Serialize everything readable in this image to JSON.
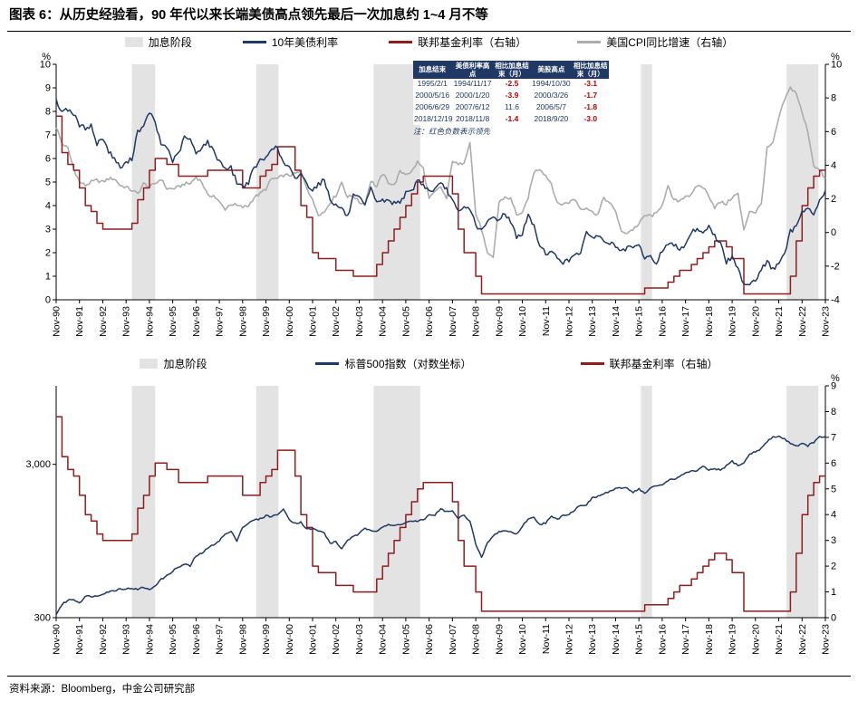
{
  "title": "图表 6：从历史经验看，90 年代以来长端美债高点领先最后一次加息约 1~4 月不等",
  "source": "资料来源：Bloomberg，中金公司研究部",
  "colors": {
    "navy": "#1F3864",
    "red": "#8F1D1D",
    "gray_line": "#ACACAC",
    "band": "#E3E3E3",
    "negative": "#C00000"
  },
  "inset_table": {
    "headers": [
      "加息结束",
      "美债利率高点",
      "相比加息结束（月）",
      "美股高点",
      "相比加息结束（月）"
    ],
    "rows": [
      [
        "1995/2/1",
        "1994/11/17",
        "-2.5",
        "1994/10/30",
        "-3.1"
      ],
      [
        "2000/5/16",
        "2000/1/20",
        "-3.9",
        "2000/3/26",
        "-1.7"
      ],
      [
        "2006/6/29",
        "2007/6/12",
        "11.6",
        "2006/5/7",
        "-1.8"
      ],
      [
        "2018/12/19",
        "2018/11/8",
        "-1.4",
        "2018/9/20",
        "-3.0"
      ]
    ],
    "note": "注：红色负数表示领先"
  },
  "chart_data": [
    {
      "type": "line",
      "x_start": 1990.8333,
      "x_step": 0.25,
      "x_tick_labels": [
        "Nov-90",
        "Nov-91",
        "Nov-92",
        "Nov-93",
        "Nov-94",
        "Nov-95",
        "Nov-96",
        "Nov-97",
        "Nov-98",
        "Nov-99",
        "Nov-00",
        "Nov-01",
        "Nov-02",
        "Nov-03",
        "Nov-04",
        "Nov-05",
        "Nov-06",
        "Nov-07",
        "Nov-08",
        "Nov-09",
        "Nov-10",
        "Nov-11",
        "Nov-12",
        "Nov-13",
        "Nov-14",
        "Nov-15",
        "Nov-16",
        "Nov-17",
        "Nov-18",
        "Nov-19",
        "Nov-20",
        "Nov-21",
        "Nov-22",
        "Nov-23"
      ],
      "axes": {
        "left": {
          "min": 0,
          "max": 10,
          "step": 1,
          "unit": "%"
        },
        "right": {
          "min": -4,
          "max": 10,
          "step": 2,
          "unit": "%"
        }
      },
      "bands": [
        [
          1994.08,
          1995.08
        ],
        [
          1999.42,
          2000.37
        ],
        [
          2004.45,
          2006.45
        ],
        [
          2015.92,
          2016.4
        ],
        [
          2022.17,
          2023.54
        ]
      ],
      "legend": [
        {
          "label": "加息阶段",
          "type": "band",
          "color": "#E3E3E3"
        },
        {
          "label": "10年美债利率",
          "type": "line",
          "color": "#1F3864"
        },
        {
          "label": "联邦基金利率（右轴）",
          "type": "line",
          "color": "#8F1D1D"
        },
        {
          "label": "美国CPI同比增速（右轴）",
          "type": "line",
          "color": "#ACACAC"
        }
      ],
      "series": [
        {
          "name": "美国CPI同比增速（右轴）",
          "axis": "right",
          "color": "#ACACAC",
          "width": 1.6,
          "step": false,
          "values": [
            6.3,
            5.3,
            5.0,
            3.8,
            3.0,
            2.8,
            3.0,
            3.1,
            3.0,
            3.2,
            3.2,
            2.8,
            2.7,
            2.5,
            2.3,
            2.9,
            2.7,
            2.9,
            3.2,
            2.6,
            2.6,
            2.7,
            2.9,
            2.9,
            3.3,
            3.0,
            2.2,
            2.2,
            1.8,
            1.4,
            1.7,
            1.6,
            1.5,
            1.6,
            2.1,
            2.3,
            2.6,
            3.2,
            3.2,
            3.4,
            3.4,
            3.5,
            3.6,
            2.7,
            1.9,
            1.1,
            1.2,
            1.8,
            2.2,
            3.0,
            2.1,
            2.2,
            1.8,
            1.7,
            3.1,
            2.7,
            3.5,
            3.0,
            2.8,
            3.6,
            3.5,
            3.6,
            4.2,
            3.8,
            2.0,
            2.4,
            2.7,
            2.0,
            4.3,
            4.0,
            4.2,
            5.4,
            1.1,
            0.2,
            -1.3,
            -1.5,
            1.8,
            2.1,
            2.0,
            1.1,
            1.1,
            2.1,
            3.6,
            3.8,
            3.4,
            2.9,
            1.7,
            1.7,
            1.8,
            2.0,
            1.4,
            1.5,
            1.2,
            1.1,
            2.1,
            1.7,
            1.3,
            0.0,
            0.0,
            0.2,
            0.5,
            1.0,
            1.0,
            1.1,
            1.7,
            2.7,
            1.9,
            1.9,
            2.2,
            2.2,
            2.8,
            2.7,
            2.2,
            1.5,
            1.8,
            1.7,
            2.1,
            2.3,
            0.1,
            1.3,
            1.2,
            1.7,
            5.0,
            5.3,
            6.8,
            7.9,
            8.6,
            8.3,
            7.1,
            6.0,
            4.0,
            3.7,
            3.2
          ]
        },
        {
          "name": "联邦基金利率（右轴）",
          "axis": "left",
          "color": "#8F1D1D",
          "width": 1.5,
          "step": true,
          "values": [
            7.8,
            6.25,
            5.75,
            5.5,
            4.75,
            4.0,
            3.75,
            3.25,
            3.0,
            3.0,
            3.0,
            3.0,
            3.0,
            3.25,
            4.25,
            4.75,
            5.5,
            6.0,
            6.0,
            5.75,
            5.75,
            5.25,
            5.25,
            5.25,
            5.25,
            5.25,
            5.5,
            5.5,
            5.5,
            5.5,
            5.5,
            5.5,
            4.75,
            4.75,
            4.75,
            5.25,
            5.5,
            5.75,
            6.5,
            6.5,
            6.5,
            5.5,
            4.0,
            3.5,
            2.0,
            1.75,
            1.75,
            1.75,
            1.25,
            1.25,
            1.25,
            1.0,
            1.0,
            1.0,
            1.0,
            1.5,
            2.0,
            2.5,
            3.0,
            3.5,
            4.0,
            4.5,
            5.0,
            5.25,
            5.25,
            5.25,
            5.25,
            5.25,
            4.5,
            3.0,
            2.0,
            2.0,
            1.0,
            0.25,
            0.25,
            0.25,
            0.25,
            0.25,
            0.25,
            0.25,
            0.25,
            0.25,
            0.25,
            0.25,
            0.25,
            0.25,
            0.25,
            0.25,
            0.25,
            0.25,
            0.25,
            0.25,
            0.25,
            0.25,
            0.25,
            0.25,
            0.25,
            0.25,
            0.25,
            0.25,
            0.25,
            0.5,
            0.5,
            0.5,
            0.5,
            0.75,
            1.0,
            1.25,
            1.25,
            1.5,
            1.75,
            2.0,
            2.25,
            2.5,
            2.5,
            2.25,
            1.75,
            1.75,
            0.25,
            0.25,
            0.25,
            0.25,
            0.25,
            0.25,
            0.25,
            0.25,
            1.0,
            2.5,
            4.0,
            4.75,
            5.25,
            5.5,
            5.5
          ]
        },
        {
          "name": "10年美债利率",
          "axis": "left",
          "color": "#1F3864",
          "width": 1.5,
          "step": false,
          "values": [
            8.45,
            8.0,
            8.1,
            7.9,
            7.4,
            7.3,
            7.4,
            6.6,
            6.9,
            6.3,
            6.0,
            5.6,
            5.8,
            6.0,
            7.2,
            7.3,
            8.0,
            7.5,
            6.6,
            6.5,
            5.9,
            6.2,
            6.9,
            6.8,
            6.2,
            6.5,
            6.7,
            6.3,
            5.9,
            5.6,
            5.6,
            5.0,
            4.8,
            5.0,
            5.6,
            5.9,
            6.0,
            6.5,
            6.4,
            5.8,
            5.6,
            5.1,
            5.4,
            4.9,
            4.7,
            4.9,
            5.1,
            4.3,
            4.0,
            3.9,
            3.5,
            4.4,
            4.3,
            4.0,
            4.7,
            4.2,
            4.2,
            4.2,
            4.1,
            4.2,
            4.5,
            4.6,
            5.1,
            4.9,
            4.6,
            4.7,
            4.9,
            4.7,
            4.2,
            3.7,
            3.9,
            3.9,
            3.2,
            2.9,
            3.3,
            3.5,
            3.4,
            3.7,
            3.3,
            2.7,
            2.8,
            3.6,
            3.1,
            2.3,
            2.0,
            2.0,
            1.8,
            1.6,
            1.65,
            2.0,
            2.0,
            2.8,
            2.7,
            2.7,
            2.5,
            2.4,
            2.3,
            2.0,
            2.2,
            2.2,
            2.3,
            1.8,
            1.8,
            1.55,
            2.1,
            2.4,
            2.3,
            2.2,
            2.35,
            2.9,
            3.0,
            2.9,
            3.1,
            2.7,
            2.4,
            1.6,
            1.8,
            1.3,
            0.7,
            0.7,
            0.85,
            1.3,
            1.6,
            1.3,
            1.55,
            1.9,
            2.9,
            3.1,
            3.8,
            3.9,
            3.6,
            4.2,
            4.65
          ]
        }
      ]
    },
    {
      "type": "line",
      "x_start": 1990.8333,
      "x_step": 0.25,
      "x_tick_labels": [
        "Nov-90",
        "Nov-91",
        "Nov-92",
        "Nov-93",
        "Nov-94",
        "Nov-95",
        "Nov-96",
        "Nov-97",
        "Nov-98",
        "Nov-99",
        "Nov-00",
        "Nov-01",
        "Nov-02",
        "Nov-03",
        "Nov-04",
        "Nov-05",
        "Nov-06",
        "Nov-07",
        "Nov-08",
        "Nov-09",
        "Nov-10",
        "Nov-11",
        "Nov-12",
        "Nov-13",
        "Nov-14",
        "Nov-15",
        "Nov-16",
        "Nov-17",
        "Nov-18",
        "Nov-19",
        "Nov-20",
        "Nov-21",
        "Nov-22",
        "Nov-23"
      ],
      "axes": {
        "left": {
          "type": "log",
          "min": 300,
          "max": 9750,
          "ticks": [
            300,
            3000
          ],
          "tick_labels": [
            "300",
            "3,000"
          ]
        },
        "right": {
          "min": 0,
          "max": 9,
          "step": 1,
          "unit": "%"
        }
      },
      "bands": [
        [
          1994.08,
          1995.08
        ],
        [
          1999.42,
          2000.37
        ],
        [
          2004.45,
          2006.45
        ],
        [
          2015.92,
          2016.4
        ],
        [
          2022.17,
          2023.54
        ]
      ],
      "legend": [
        {
          "label": "加息阶段",
          "type": "band",
          "color": "#E3E3E3"
        },
        {
          "label": "标普500指数（对数坐标）",
          "type": "line",
          "color": "#1F3864"
        },
        {
          "label": "联邦基金利率（右轴）",
          "type": "line",
          "color": "#8F1D1D"
        }
      ],
      "series": [
        {
          "name": "联邦基金利率（右轴）",
          "axis": "right",
          "color": "#8F1D1D",
          "width": 1.5,
          "step": true,
          "values": [
            7.8,
            6.25,
            5.75,
            5.5,
            4.75,
            4.0,
            3.75,
            3.25,
            3.0,
            3.0,
            3.0,
            3.0,
            3.0,
            3.25,
            4.25,
            4.75,
            5.5,
            6.0,
            6.0,
            5.75,
            5.75,
            5.25,
            5.25,
            5.25,
            5.25,
            5.25,
            5.5,
            5.5,
            5.5,
            5.5,
            5.5,
            5.5,
            4.75,
            4.75,
            4.75,
            5.25,
            5.5,
            5.75,
            6.5,
            6.5,
            6.5,
            5.5,
            4.0,
            3.5,
            2.0,
            1.75,
            1.75,
            1.75,
            1.25,
            1.25,
            1.25,
            1.0,
            1.0,
            1.0,
            1.0,
            1.5,
            2.0,
            2.5,
            3.0,
            3.5,
            4.0,
            4.5,
            5.0,
            5.25,
            5.25,
            5.25,
            5.25,
            5.25,
            4.5,
            3.0,
            2.0,
            2.0,
            1.0,
            0.25,
            0.25,
            0.25,
            0.25,
            0.25,
            0.25,
            0.25,
            0.25,
            0.25,
            0.25,
            0.25,
            0.25,
            0.25,
            0.25,
            0.25,
            0.25,
            0.25,
            0.25,
            0.25,
            0.25,
            0.25,
            0.25,
            0.25,
            0.25,
            0.25,
            0.25,
            0.25,
            0.25,
            0.5,
            0.5,
            0.5,
            0.5,
            0.75,
            1.0,
            1.25,
            1.25,
            1.5,
            1.75,
            2.0,
            2.25,
            2.5,
            2.5,
            2.25,
            1.75,
            1.75,
            0.25,
            0.25,
            0.25,
            0.25,
            0.25,
            0.25,
            0.25,
            0.25,
            1.0,
            2.5,
            4.0,
            4.75,
            5.25,
            5.5,
            5.5
          ]
        },
        {
          "name": "标普500指数（对数坐标）",
          "axis": "left",
          "color": "#1F3864",
          "width": 1.5,
          "step": false,
          "values": [
            315,
            365,
            390,
            395,
            375,
            413,
            415,
            414,
            431,
            443,
            450,
            464,
            462,
            467,
            457,
            475,
            454,
            487,
            533,
            562,
            605,
            640,
            669,
            652,
            757,
            791,
            848,
            899,
            955,
            1049,
            1091,
            957,
            1164,
            1238,
            1302,
            1320,
            1389,
            1366,
            1421,
            1518,
            1315,
            1240,
            1256,
            1134,
            1139,
            1107,
            1067,
            916,
            936,
            841,
            964,
            1008,
            1058,
            1145,
            1121,
            1104,
            1174,
            1204,
            1192,
            1220,
            1249,
            1281,
            1270,
            1304,
            1401,
            1407,
            1531,
            1474,
            1481,
            1331,
            1400,
            1283,
            896,
            735,
            919,
            1021,
            1096,
            1104,
            1089,
            1049,
            1181,
            1327,
            1345,
            1219,
            1247,
            1366,
            1310,
            1407,
            1416,
            1515,
            1631,
            1633,
            1806,
            1859,
            1924,
            2003,
            2068,
            2105,
            2107,
            1972,
            2080,
            1932,
            2097,
            2171,
            2199,
            2364,
            2412,
            2472,
            2648,
            2714,
            2705,
            2902,
            2760,
            2784,
            2752,
            2926,
            3141,
            2954,
            3044,
            3500,
            3622,
            3811,
            4204,
            4523,
            4567,
            4374,
            4132,
            3955,
            4080,
            3970,
            4180,
            4508,
            4550
          ]
        }
      ]
    }
  ]
}
